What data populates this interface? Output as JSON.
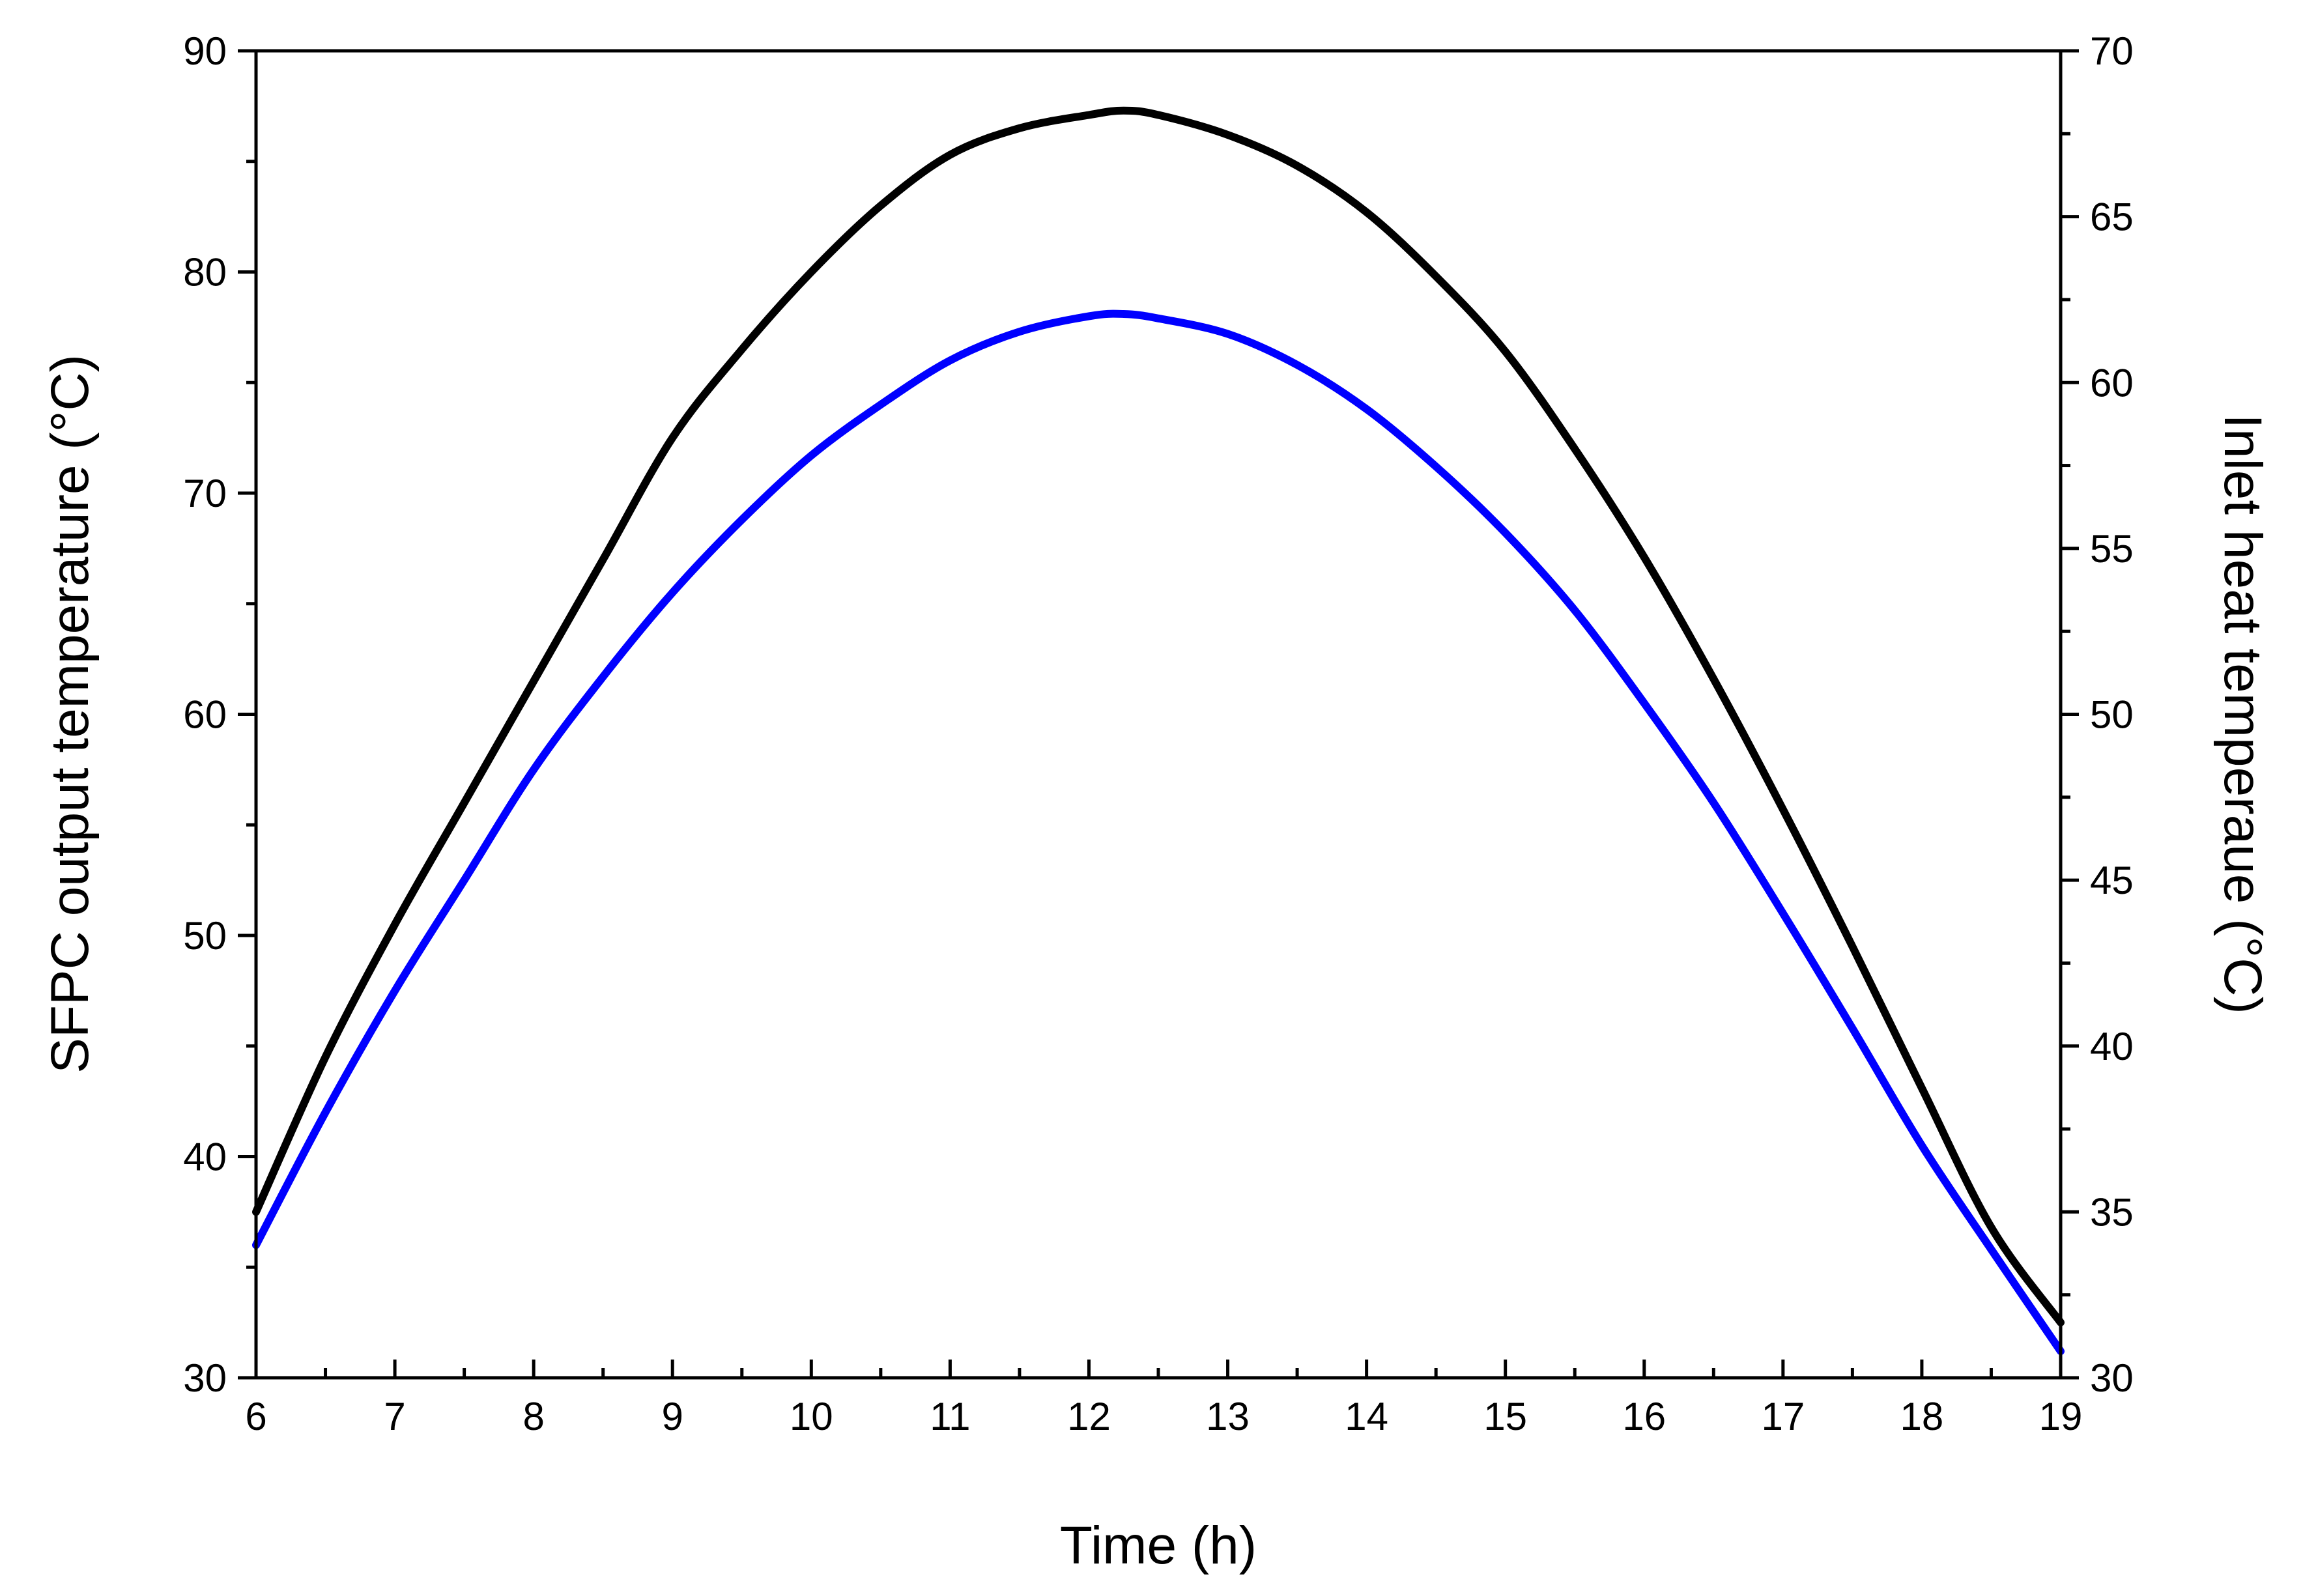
{
  "chart_data": {
    "type": "line",
    "xlabel": "Time (h)",
    "ylabel_left": "SFPC output temperature (°C)",
    "ylabel_right": "Inlet heat temperaue (°C)",
    "xlim": [
      6,
      19
    ],
    "ylim_left": [
      30,
      90
    ],
    "ylim_right": [
      30,
      70
    ],
    "x_ticks": [
      6,
      7,
      8,
      9,
      10,
      11,
      12,
      13,
      14,
      15,
      16,
      17,
      18,
      19
    ],
    "y_ticks_left": [
      30,
      40,
      50,
      60,
      70,
      80,
      90
    ],
    "y_ticks_right": [
      30,
      35,
      40,
      45,
      50,
      55,
      60,
      65,
      70
    ],
    "x_minor_step": 0.5,
    "y_minor_step_left": 5,
    "y_minor_step_right": 2.5,
    "series": [
      {
        "axis": "left",
        "color": "#000000",
        "x": [
          6,
          6.5,
          7,
          7.5,
          8,
          8.5,
          9,
          9.5,
          10,
          10.5,
          11,
          11.5,
          12,
          12.25,
          12.5,
          13,
          13.5,
          14,
          14.5,
          15,
          15.5,
          16,
          16.5,
          17,
          17.5,
          18,
          18.5,
          19
        ],
        "y": [
          37.5,
          44.5,
          50.5,
          56,
          61.5,
          67,
          72.5,
          76.5,
          80,
          83,
          85.3,
          86.5,
          87.1,
          87.3,
          87.1,
          86.2,
          84.8,
          82.7,
          79.8,
          76.4,
          72,
          67.1,
          61.6,
          55.7,
          49.5,
          43.1,
          36.8,
          32.5
        ]
      },
      {
        "axis": "left",
        "color": "#0000ff",
        "x": [
          6,
          6.5,
          7,
          7.5,
          8,
          8.5,
          9,
          9.5,
          10,
          10.5,
          11,
          11.5,
          12,
          12.25,
          12.5,
          13,
          13.5,
          14,
          14.5,
          15,
          15.5,
          16,
          16.5,
          17,
          17.5,
          18,
          18.5,
          19
        ],
        "y": [
          36,
          42,
          47.5,
          52.5,
          57.5,
          61.7,
          65.5,
          68.8,
          71.7,
          74,
          76,
          77.3,
          78,
          78.1,
          77.9,
          77.2,
          75.8,
          73.8,
          71.2,
          68.2,
          64.7,
          60.5,
          56,
          51,
          45.8,
          40.5,
          35.8,
          31.2
        ]
      }
    ]
  }
}
